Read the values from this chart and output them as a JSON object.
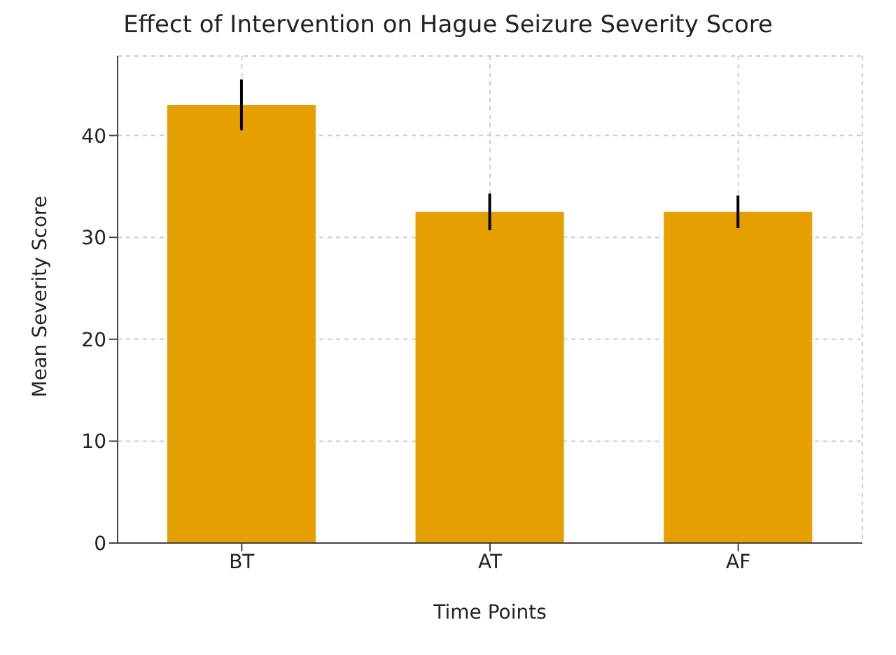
{
  "chart_data": {
    "type": "bar",
    "title": "Effect of Intervention on Hague Seizure Severity Score",
    "xlabel": "Time Points",
    "ylabel": "Mean Severity Score",
    "categories": [
      "BT",
      "AT",
      "AF"
    ],
    "series": [
      {
        "color": "#e69f00",
        "values": [
          43,
          32.5,
          32.5
        ],
        "errors": [
          2.5,
          1.8,
          1.6
        ]
      }
    ],
    "ylim": [
      0,
      47.8
    ],
    "yticks": [
      0,
      10,
      20,
      30,
      40
    ],
    "grid": true
  }
}
